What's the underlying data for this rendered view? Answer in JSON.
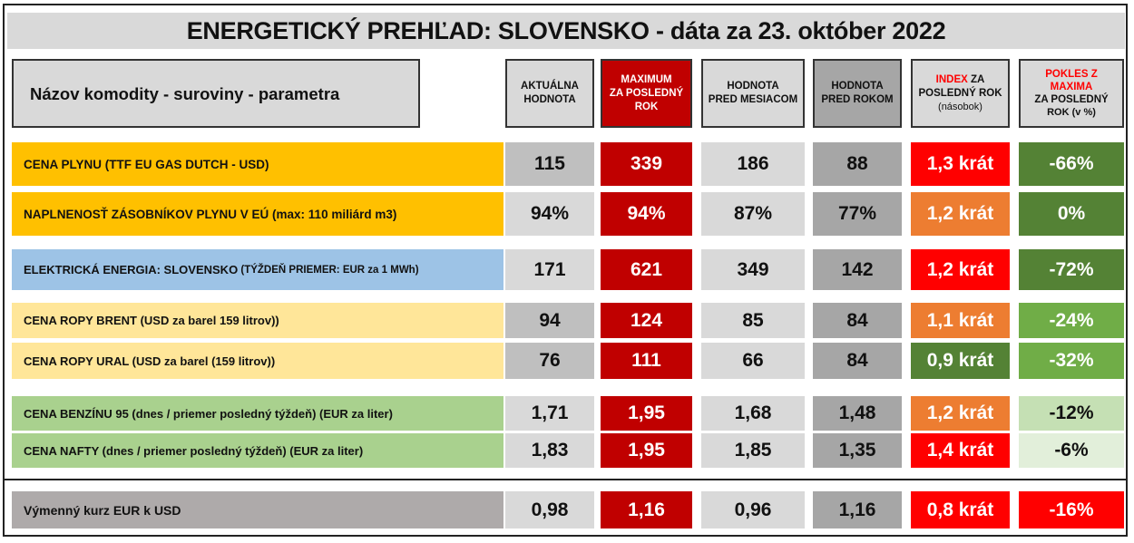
{
  "title": "ENERGETICKÝ PREHĽAD: SLOVENSKO - dáta za 23. október 2022",
  "headers": {
    "name": "Názov komodity - suroviny - parametra",
    "current": [
      "AKTUÁLNA",
      "HODNOTA"
    ],
    "maximum": [
      "MAXIMUM",
      "ZA POSLEDNÝ",
      "ROK"
    ],
    "month_ago": [
      "HODNOTA",
      "PRED MESIACOM"
    ],
    "year_ago": [
      "HODNOTA",
      "PRED ROKOM"
    ],
    "index": {
      "red": "INDEX",
      "rest1": " ZA",
      "line2": "POSLEDNÝ ROK",
      "line3": "(násobok)"
    },
    "drop": {
      "red1": "POKLES Z",
      "red2": "MAXIMA",
      "line3": "ZA POSLEDNÝ",
      "line4": "ROK (v %)"
    }
  },
  "colors": {
    "gas": "#ffc000",
    "electricity": "#9dc3e6",
    "oil": "#ffe699",
    "fuel": "#a9d18e",
    "fx": "#aeaaaa",
    "current_dark": "#bfbfbf",
    "current_light": "#d9d9d9",
    "maximum": "#c00000",
    "month": "#d9d9d9",
    "year": "#a6a6a6",
    "red": "#ff0000",
    "orange": "#ed7d31",
    "dark_green": "#548235",
    "green": "#70ad47",
    "light_green": "#c5e0b4",
    "pale_green": "#e2efda"
  },
  "rows": [
    {
      "name": "CENA PLYNU (TTF EU GAS DUTCH - USD)",
      "current": "115",
      "maximum": "339",
      "month_ago": "186",
      "year_ago": "88",
      "index": "1,3 krát",
      "drop": "-66%",
      "name_color": "gas",
      "current_color": "current_dark",
      "index_color": "red",
      "drop_color": "dark_green"
    },
    {
      "name": "NAPLNENOSŤ ZÁSOBNÍKOV PLYNU V EÚ (max: 110 miliárd m3)",
      "current": "94%",
      "maximum": "94%",
      "month_ago": "87%",
      "year_ago": "77%",
      "index": "1,2 krát",
      "drop": "0%",
      "name_color": "gas",
      "current_color": "current_light",
      "index_color": "orange",
      "drop_color": "dark_green"
    },
    {
      "name": "ELEKTRICKÁ ENERGIA: SLOVENSKO",
      "name_suffix": " (TÝŽDEŇ PRIEMER: EUR za 1 MWh)",
      "current": "171",
      "maximum": "621",
      "month_ago": "349",
      "year_ago": "142",
      "index": "1,2 krát",
      "drop": "-72%",
      "name_color": "electricity",
      "current_color": "current_light",
      "index_color": "red",
      "drop_color": "dark_green"
    },
    {
      "name": "CENA ROPY BRENT (USD za barel 159 litrov))",
      "current": "94",
      "maximum": "124",
      "month_ago": "85",
      "year_ago": "84",
      "index": "1,1 krát",
      "drop": "-24%",
      "name_color": "oil",
      "current_color": "current_dark",
      "index_color": "orange",
      "drop_color": "green"
    },
    {
      "name": "CENA ROPY URAL (USD za barel (159 litrov))",
      "current": "76",
      "maximum": "111",
      "month_ago": "66",
      "year_ago": "84",
      "index": "0,9 krát",
      "drop": "-32%",
      "name_color": "oil",
      "current_color": "current_dark",
      "index_color": "dark_green",
      "drop_color": "green"
    },
    {
      "name": "CENA BENZÍNU 95 (dnes / priemer posledný týždeň) (EUR za liter)",
      "current": "1,71",
      "maximum": "1,95",
      "month_ago": "1,68",
      "year_ago": "1,48",
      "index": "1,2 krát",
      "drop": "-12%",
      "name_color": "fuel",
      "current_color": "current_light",
      "index_color": "orange",
      "drop_color": "light_green"
    },
    {
      "name": "CENA NAFTY (dnes / priemer posledný týždeň) (EUR za liter)",
      "current": "1,83",
      "maximum": "1,95",
      "month_ago": "1,85",
      "year_ago": "1,35",
      "index": "1,4 krát",
      "drop": "-6%",
      "name_color": "fuel",
      "current_color": "current_light",
      "index_color": "red",
      "drop_color": "pale_green"
    },
    {
      "name": "Výmenný kurz EUR k USD",
      "current": "0,98",
      "maximum": "1,16",
      "month_ago": "0,96",
      "year_ago": "1,16",
      "index": "0,8 krát",
      "drop": "-16%",
      "name_color": "fx",
      "current_color": "current_light",
      "index_color": "red",
      "drop_color": "red"
    }
  ]
}
